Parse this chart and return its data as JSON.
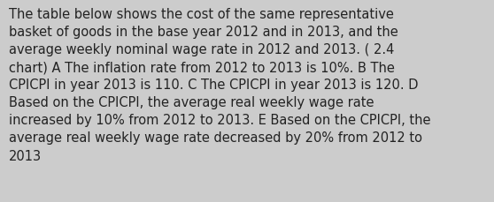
{
  "text": "The table below shows the cost of the same representative\nbasket of goods in the base year 2012 and in 2013, and the\naverage weekly nominal wage rate in 2012 and 2013. ( 2.4\nchart) A The inflation rate from 2012 to 2013 is 10%. B The\nCPICPI in year 2013 is 110. C The CPICPI in year 2013 is 120. D\nBased on the CPICPI, the average real weekly wage rate\nincreased by 10% from 2012 to 2013. E Based on the CPICPI, the\naverage real weekly wage rate decreased by 20% from 2012 to\n2013",
  "background_color": "#cccccc",
  "text_color": "#222222",
  "font_size": 10.5,
  "fig_width": 5.58,
  "fig_height": 2.3
}
